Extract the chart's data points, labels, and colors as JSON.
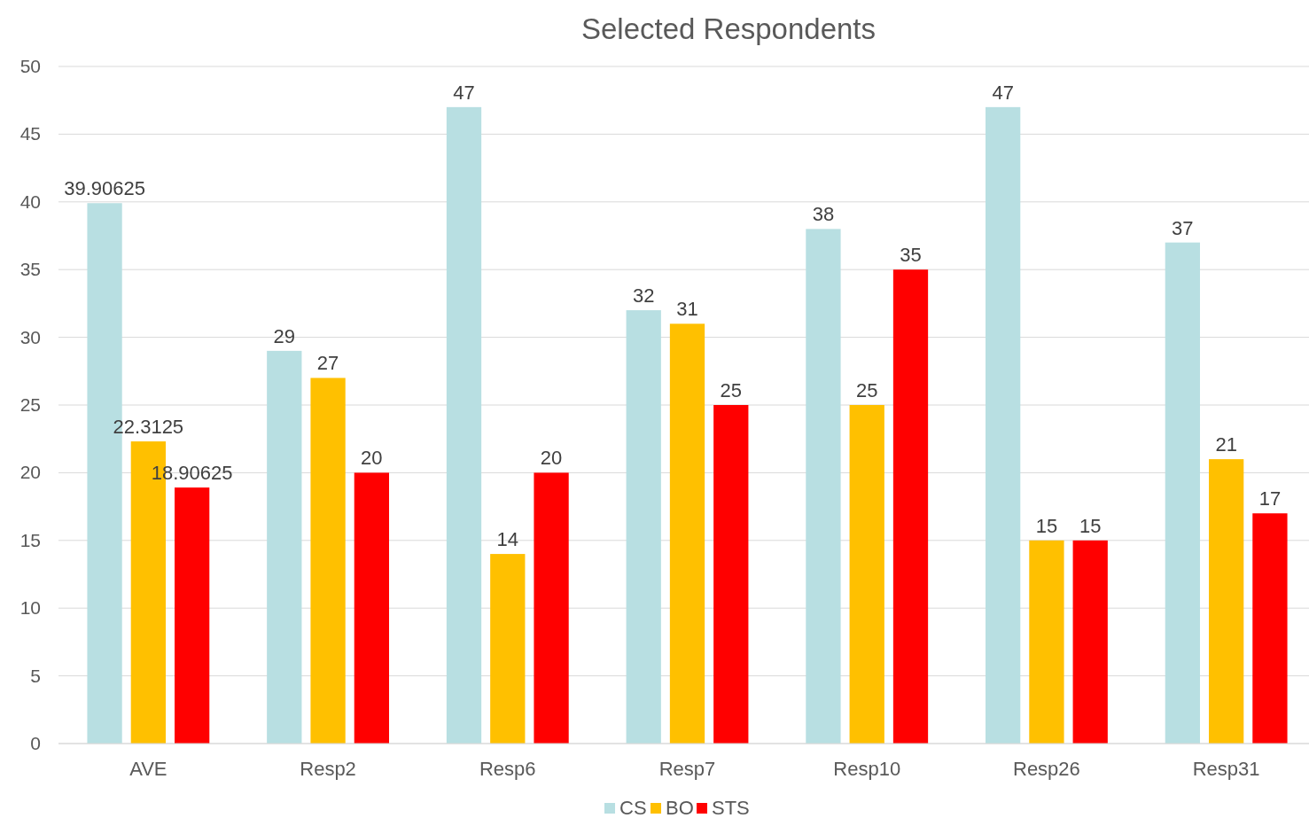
{
  "chart_data": {
    "type": "bar",
    "title": "Selected Respondents",
    "categories": [
      "AVE",
      "Resp2",
      "Resp6",
      "Resp7",
      "Resp10",
      "Resp26",
      "Resp31"
    ],
    "series": [
      {
        "name": "CS",
        "color": "#b8dfe2",
        "values": [
          39.90625,
          29,
          47,
          32,
          38,
          47,
          37
        ]
      },
      {
        "name": "BO",
        "color": "#ffc000",
        "values": [
          22.3125,
          27,
          14,
          31,
          25,
          15,
          21
        ]
      },
      {
        "name": "STS",
        "color": "#ff0000",
        "values": [
          18.90625,
          20,
          20,
          25,
          35,
          15,
          17
        ]
      }
    ],
    "ylim": [
      0,
      50
    ],
    "yticks": [
      0,
      5,
      10,
      15,
      20,
      25,
      30,
      35,
      40,
      45,
      50
    ],
    "grid": "y",
    "legend": "bottom",
    "data_labels": true
  }
}
